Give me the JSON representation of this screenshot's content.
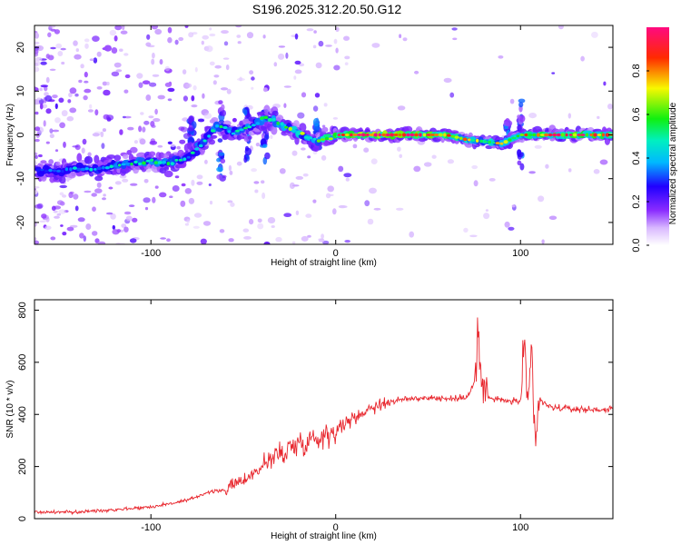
{
  "figure_title": "S196.2025.312.20.50.G12",
  "colors": {
    "snr_line": "#e8262d",
    "ridge_core": "#f00d2e",
    "scatter_fill": "#c9a8ff"
  },
  "chart_data": [
    {
      "type": "heatmap",
      "title": "S196.2025.312.20.50.G12",
      "xlabel": "Height of straight line (km)",
      "ylabel": "Frequency (Hz)",
      "xlim": [
        -163,
        150
      ],
      "ylim": [
        -25,
        25
      ],
      "xticks": [
        -100,
        0,
        100
      ],
      "yticks": [
        -20,
        -10,
        0,
        10,
        20
      ],
      "colorbar": {
        "label": "Normalized spectral amplitude",
        "range": [
          0.0,
          1.0
        ],
        "ticks": [
          "0.0",
          "0.2",
          "0.4",
          "0.6",
          "0.8"
        ],
        "colormap": [
          "#ffffff",
          "#a040ff",
          "#3000ff",
          "#00e0ff",
          "#10f010",
          "#ffff00",
          "#ff0000",
          "#ff0080"
        ]
      },
      "ridge": [
        {
          "x": -160,
          "f": -8.0,
          "a": 0.3
        },
        {
          "x": -150,
          "f": -8.5,
          "a": 0.35
        },
        {
          "x": -140,
          "f": -7.5,
          "a": 0.4
        },
        {
          "x": -130,
          "f": -7.8,
          "a": 0.4
        },
        {
          "x": -120,
          "f": -7.0,
          "a": 0.45
        },
        {
          "x": -110,
          "f": -6.5,
          "a": 0.5
        },
        {
          "x": -100,
          "f": -6.0,
          "a": 0.5
        },
        {
          "x": -90,
          "f": -6.5,
          "a": 0.5
        },
        {
          "x": -80,
          "f": -5.0,
          "a": 0.45
        },
        {
          "x": -72,
          "f": -2.0,
          "a": 0.5
        },
        {
          "x": -65,
          "f": 2.0,
          "a": 0.5
        },
        {
          "x": -55,
          "f": 0.5,
          "a": 0.45
        },
        {
          "x": -45,
          "f": 2.0,
          "a": 0.5
        },
        {
          "x": -38,
          "f": 4.0,
          "a": 0.55
        },
        {
          "x": -30,
          "f": 2.5,
          "a": 0.55
        },
        {
          "x": -20,
          "f": 0.5,
          "a": 0.6
        },
        {
          "x": -10,
          "f": -1.5,
          "a": 0.6
        },
        {
          "x": 0,
          "f": 0.0,
          "a": 0.8
        },
        {
          "x": 10,
          "f": 0.0,
          "a": 0.9
        },
        {
          "x": 20,
          "f": 0.0,
          "a": 0.95
        },
        {
          "x": 30,
          "f": 0.0,
          "a": 0.95
        },
        {
          "x": 40,
          "f": 0.0,
          "a": 0.95
        },
        {
          "x": 50,
          "f": 0.0,
          "a": 0.9
        },
        {
          "x": 60,
          "f": 0.0,
          "a": 0.8
        },
        {
          "x": 70,
          "f": -1.0,
          "a": 0.7
        },
        {
          "x": 80,
          "f": -1.5,
          "a": 0.65
        },
        {
          "x": 90,
          "f": -2.0,
          "a": 0.65
        },
        {
          "x": 100,
          "f": 0.0,
          "a": 0.7
        },
        {
          "x": 110,
          "f": 0.0,
          "a": 0.8
        },
        {
          "x": 120,
          "f": 0.0,
          "a": 0.85
        },
        {
          "x": 130,
          "f": 0.0,
          "a": 0.85
        },
        {
          "x": 140,
          "f": 0.0,
          "a": 0.8
        },
        {
          "x": 150,
          "f": 0.0,
          "a": 0.8
        }
      ]
    },
    {
      "type": "line",
      "xlabel": "Height of straight line (km)",
      "ylabel": "SNR (10 * v/v)",
      "xlim": [
        -163,
        150
      ],
      "ylim": [
        0,
        840
      ],
      "xticks": [
        -100,
        0,
        100
      ],
      "yticks": [
        0,
        200,
        400,
        600,
        800
      ],
      "series": [
        {
          "name": "SNR",
          "x": [
            -163,
            -140,
            -120,
            -100,
            -80,
            -70,
            -60,
            -50,
            -45,
            -40,
            -35,
            -30,
            -25,
            -20,
            -15,
            -10,
            -5,
            0,
            5,
            10,
            15,
            20,
            25,
            30,
            40,
            50,
            60,
            70,
            75,
            77,
            79,
            81,
            85,
            90,
            95,
            100,
            102,
            104,
            106,
            108,
            110,
            115,
            120,
            130,
            140,
            150
          ],
          "values": [
            25,
            25,
            35,
            45,
            70,
            100,
            110,
            150,
            170,
            200,
            230,
            250,
            270,
            290,
            300,
            310,
            325,
            340,
            365,
            385,
            410,
            430,
            440,
            450,
            460,
            465,
            460,
            462,
            520,
            700,
            520,
            470,
            460,
            455,
            450,
            450,
            600,
            400,
            640,
            260,
            460,
            430,
            425,
            420,
            418,
            420
          ]
        }
      ]
    }
  ]
}
